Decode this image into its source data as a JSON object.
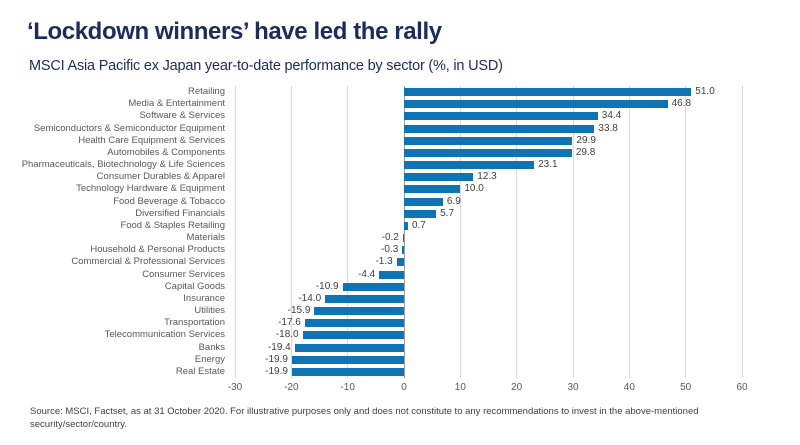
{
  "header": {
    "title": "‘Lockdown winners’ have led the rally",
    "subtitle": "MSCI Asia Pacific ex Japan year-to-date performance by sector (%, in USD)"
  },
  "chart_data": {
    "type": "bar",
    "orientation": "horizontal",
    "title": "‘Lockdown winners’ have led the rally",
    "subtitle": "MSCI Asia Pacific ex Japan year-to-date performance by sector (%, in USD)",
    "categories": [
      "Retailing",
      "Media & Entertainment",
      "Software & Services",
      "Semiconductors & Semiconductor Equipment",
      "Health Care Equipment & Services",
      "Automobiles & Components",
      "Pharmaceuticals, Biotechnology & Life Sciences",
      "Consumer Durables & Apparel",
      "Technology Hardware & Equipment",
      "Food Beverage & Tobacco",
      "Diversified Financials",
      "Food & Staples Retailing",
      "Materials",
      "Household & Personal Products",
      "Commercial & Professional Services",
      "Consumer Services",
      "Capital Goods",
      "Insurance",
      "Utilities",
      "Transportation",
      "Telecommunication Services",
      "Banks",
      "Energy",
      "Real Estate"
    ],
    "values": [
      51.0,
      46.8,
      34.4,
      33.8,
      29.9,
      29.8,
      23.1,
      12.3,
      10.0,
      6.9,
      5.7,
      0.7,
      -0.2,
      -0.3,
      -1.3,
      -4.4,
      -10.9,
      -14.0,
      -15.9,
      -17.6,
      -18.0,
      -19.4,
      -19.9,
      -19.9
    ],
    "xlabel": "",
    "ylabel": "",
    "xlim": [
      -30,
      60
    ],
    "xticks": [
      -30,
      -20,
      -10,
      0,
      10,
      20,
      30,
      40,
      50,
      60
    ],
    "grid": "vertical",
    "legend": "none",
    "bar_color": "#0e74b4",
    "gridline_color": "#d9d9d9",
    "zero_line_color": "#9e9e9e"
  },
  "footer": {
    "source": "Source: MSCI, Factset, as at 31 October 2020. For illustrative purposes only and does not constitute to any recommendations to invest in the above-mentioned security/sector/country."
  }
}
